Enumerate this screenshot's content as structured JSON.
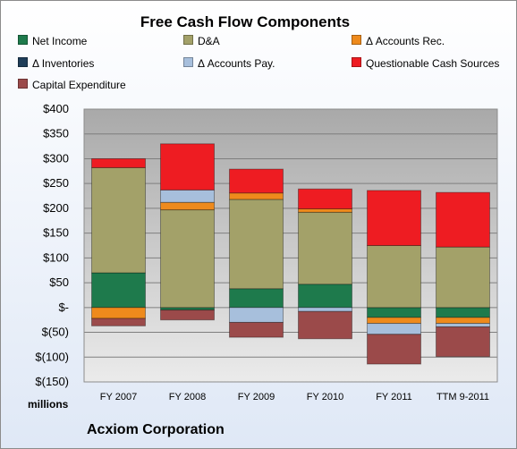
{
  "chart_data": {
    "type": "bar",
    "stacked": true,
    "title": "Free Cash Flow Components",
    "units_label": "millions",
    "company": "Acxiom Corporation",
    "categories": [
      "FY 2007",
      "FY 2008",
      "FY 2009",
      "FY 2010",
      "FY 2011",
      "TTM 9-2011"
    ],
    "ylim": [
      -150,
      400
    ],
    "y_ticks": [
      400,
      350,
      300,
      250,
      200,
      150,
      100,
      50,
      0,
      -50,
      -100,
      -150
    ],
    "y_tick_labels": [
      "$400",
      "$350",
      "$300",
      "$250",
      "$200",
      "$150",
      "$100",
      "$50",
      "$-",
      "$(50)",
      "$(100)",
      "$(150)"
    ],
    "grid": true,
    "legend_position": "top",
    "series": [
      {
        "name": "Net Income",
        "color": "#1e7a4c",
        "values": [
          70,
          -5,
          38,
          47,
          -20,
          -20
        ]
      },
      {
        "name": "D&A",
        "color": "#a3a169",
        "values": [
          212,
          197,
          180,
          145,
          125,
          122
        ]
      },
      {
        "name": "Δ Accounts Rec.",
        "color": "#ee8a1c",
        "values": [
          -22,
          15,
          13,
          7,
          -12,
          -12
        ]
      },
      {
        "name": "Δ Inventories",
        "color": "#1f3e59",
        "values": [
          0,
          0,
          0,
          0,
          0,
          0
        ]
      },
      {
        "name": "Δ Accounts Pay.",
        "color": "#a7bfdc",
        "values": [
          0,
          25,
          -30,
          -8,
          -22,
          -7
        ]
      },
      {
        "name": "Questionable Cash Sources",
        "color": "#ee1c22",
        "values": [
          18,
          93,
          48,
          40,
          111,
          110
        ]
      },
      {
        "name": "Capital Expenditure",
        "color": "#9b4a4a",
        "values": [
          -15,
          -20,
          -30,
          -55,
          -60,
          -60
        ]
      }
    ]
  }
}
